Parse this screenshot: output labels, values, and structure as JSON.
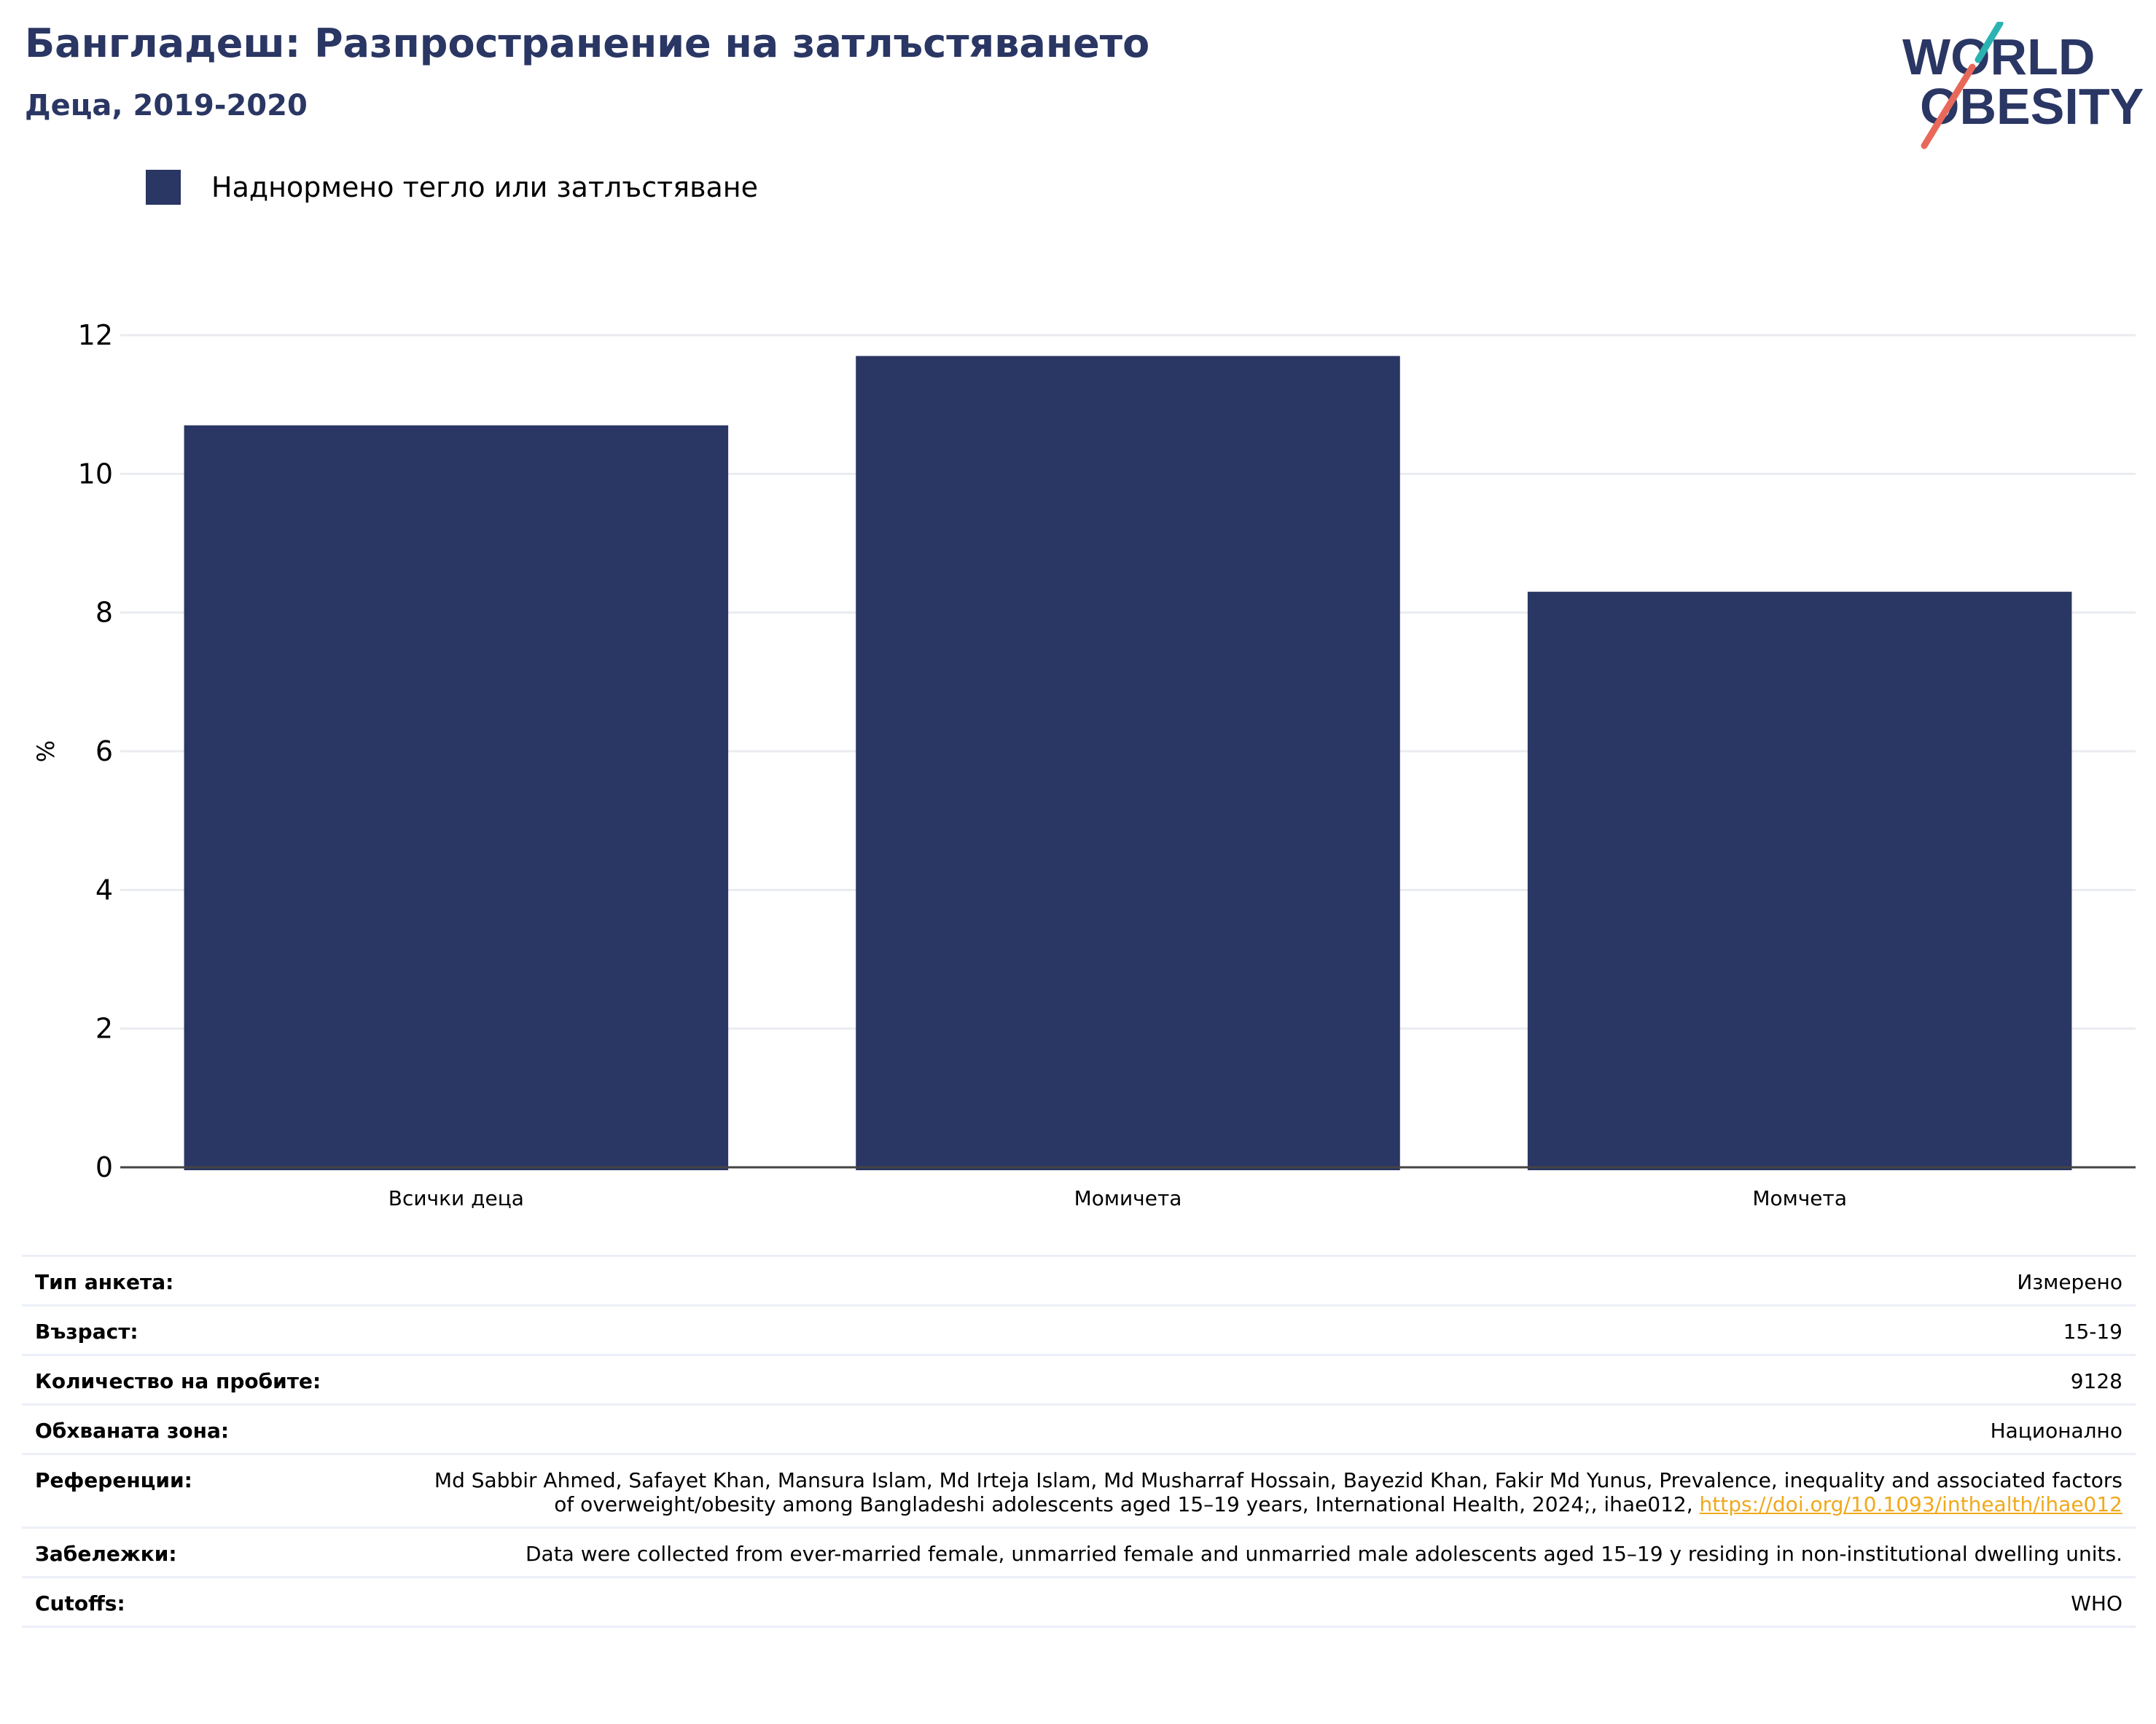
{
  "header": {
    "title": "Бангладеш: Разпространение на затлъстяването",
    "subtitle": "Деца, 2019-2020"
  },
  "logo": {
    "line1": "WORLD",
    "line2": "OBESITY"
  },
  "legend": {
    "label": "Наднормено тегло или затлъстяване",
    "color": "#2a3663"
  },
  "chart_data": {
    "type": "bar",
    "categories": [
      "Всички деца",
      "Момичета",
      "Момчета"
    ],
    "series": [
      {
        "name": "Наднормено тегло или затлъстяване",
        "values": [
          10.7,
          11.7,
          8.3
        ],
        "color": "#2a3663"
      }
    ],
    "ylabel": "%",
    "ylim": [
      0,
      12
    ],
    "yticks": [
      0,
      2,
      4,
      6,
      8,
      10,
      12
    ],
    "grid": true,
    "legend_position": "top-left"
  },
  "info": {
    "rows": [
      {
        "label": "Тип анкета:",
        "value": "Измерено"
      },
      {
        "label": "Възраст:",
        "value": "15-19"
      },
      {
        "label": "Количество на пробите:",
        "value": "9128"
      },
      {
        "label": "Обхваната зона:",
        "value": "Национално"
      },
      {
        "label": "Референции:",
        "value": "Md Sabbir Ahmed, Safayet Khan, Mansura Islam, Md Irteja Islam, Md Musharraf Hossain, Bayezid Khan, Fakir Md Yunus, Prevalence, inequality and associated factors of overweight/obesity among Bangladeshi adolescents aged 15–19 years, International Health, 2024;, ihae012, ",
        "link": "https://doi.org/10.1093/inthealth/ihae012"
      },
      {
        "label": "Забележки:",
        "value": "Data were collected from ever-married female, unmarried female and unmarried male adolescents aged 15–19 y residing in non-institutional dwelling units."
      },
      {
        "label": "Cutoffs:",
        "value": "WHO"
      }
    ]
  }
}
